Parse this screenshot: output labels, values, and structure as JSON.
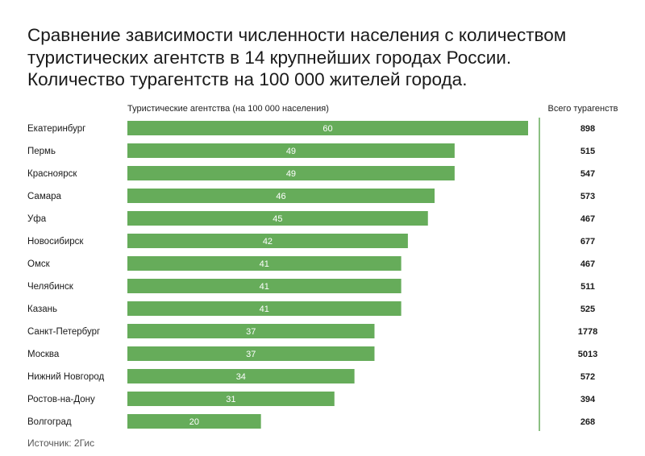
{
  "title_lines": [
    "Сравнение зависимости численности населения с количеством",
    "туристических агентств в 14 крупнейших городах России.",
    "Количество турагентств на 100 000 жителей города."
  ],
  "source": "Источник: 2Гис",
  "colors": {
    "bar": "#66ac5a",
    "bar_label": "#ffffff",
    "divider": "#66ac5a",
    "text": "#1a1a1a"
  },
  "chart_data": {
    "type": "bar",
    "orientation": "horizontal",
    "title": "Сравнение зависимости численности населения с количеством туристических агентств в 14 крупнейших городах России. Количество турагентств на 100 000 жителей города.",
    "xlabel": "Туристические агентства (на 100 000 населения)",
    "ylabel": "",
    "xlim": [
      0,
      60
    ],
    "grid": false,
    "categories": [
      "Екатеринбург",
      "Пермь",
      "Красноярск",
      "Самара",
      "Уфа",
      "Новосибирск",
      "Омск",
      "Челябинск",
      "Казань",
      "Санкт-Петербург",
      "Москва",
      "Нижний Новгород",
      "Ростов-на-Дону",
      "Волгоград"
    ],
    "values": [
      60,
      49,
      49,
      46,
      45,
      42,
      41,
      41,
      41,
      37,
      37,
      34,
      31,
      20
    ],
    "secondary_column": {
      "header": "Всего турагенств",
      "values": [
        898,
        515,
        547,
        573,
        467,
        677,
        467,
        511,
        525,
        1778,
        5013,
        572,
        394,
        268
      ]
    }
  }
}
